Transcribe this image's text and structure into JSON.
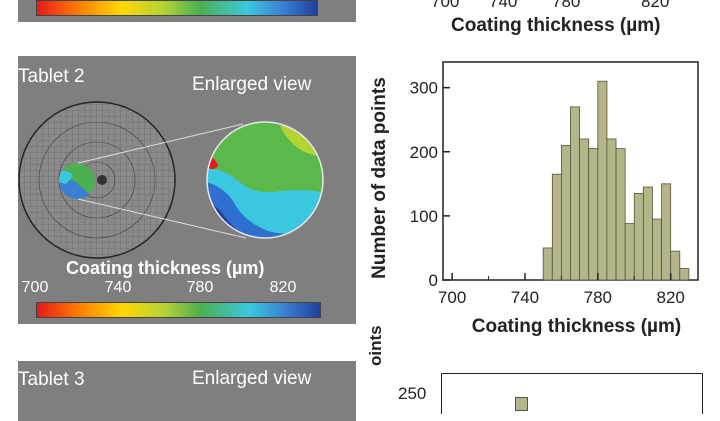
{
  "top_panel": {
    "colorbar": {
      "colors": [
        "#e31a1c",
        "#ff7f00",
        "#ffd700",
        "#b5d334",
        "#4caf50",
        "#3cc7e0",
        "#3a7fd0",
        "#1f3fa0"
      ]
    },
    "xtick_labels": [
      "700",
      "740",
      "780",
      "820"
    ],
    "xlabel": "Coating thickness (µm)"
  },
  "tablet2": {
    "title": "Tablet 2",
    "enlarged_label": "Enlarged view",
    "colorbar_title": "Coating thickness (µm)",
    "colorbar_ticks": [
      "700",
      "740",
      "780",
      "820"
    ]
  },
  "tablet3": {
    "title": "Tablet 3",
    "enlarged_label": "Enlarged view",
    "ylabel_fragment": "oints",
    "ytick": "250"
  },
  "chart_data": {
    "type": "bar",
    "title": "",
    "xlabel": "Coating thickness (µm)",
    "ylabel": "Number of data points",
    "xlim": [
      695,
      835
    ],
    "ylim": [
      0,
      340
    ],
    "xticks": [
      700,
      740,
      780,
      820
    ],
    "yticks": [
      0,
      100,
      200,
      300
    ],
    "bar_color": "#b5b58a",
    "bin_width": 5,
    "bins": [
      {
        "x": 750,
        "value": 50
      },
      {
        "x": 755,
        "value": 165
      },
      {
        "x": 760,
        "value": 210
      },
      {
        "x": 765,
        "value": 270
      },
      {
        "x": 770,
        "value": 220
      },
      {
        "x": 775,
        "value": 205
      },
      {
        "x": 780,
        "value": 310
      },
      {
        "x": 785,
        "value": 220
      },
      {
        "x": 790,
        "value": 205
      },
      {
        "x": 795,
        "value": 88
      },
      {
        "x": 800,
        "value": 135
      },
      {
        "x": 805,
        "value": 145
      },
      {
        "x": 810,
        "value": 95
      },
      {
        "x": 815,
        "value": 150
      },
      {
        "x": 820,
        "value": 45
      },
      {
        "x": 825,
        "value": 18
      }
    ]
  }
}
